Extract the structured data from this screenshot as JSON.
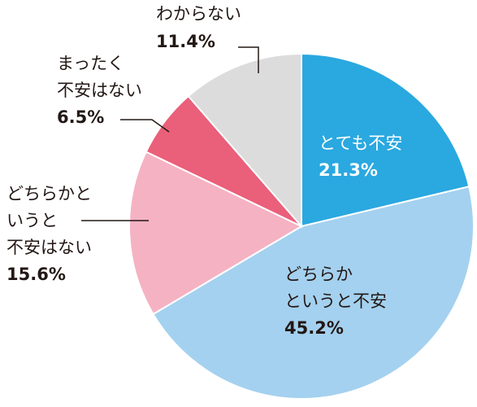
{
  "chart_data": {
    "type": "pie",
    "title": "",
    "start_angle_deg": 0,
    "direction": "clockwise",
    "slices": [
      {
        "label_lines": [
          "とても不安"
        ],
        "value": 21.3,
        "value_text": "21.3%",
        "color": "#2aa8e0"
      },
      {
        "label_lines": [
          "どちらか",
          "というと不安"
        ],
        "value": 45.2,
        "value_text": "45.2%",
        "color": "#a4d1ef"
      },
      {
        "label_lines": [
          "どちらかと",
          "いうと",
          "不安はない"
        ],
        "value": 15.6,
        "value_text": "15.6%",
        "color": "#f5b2c3"
      },
      {
        "label_lines": [
          "まったく",
          "不安はない"
        ],
        "value": 6.5,
        "value_text": "6.5%",
        "color": "#ea5f7a"
      },
      {
        "label_lines": [
          "わからない"
        ],
        "value": 11.4,
        "value_text": "11.4%",
        "color": "#dcdcdd"
      }
    ]
  }
}
